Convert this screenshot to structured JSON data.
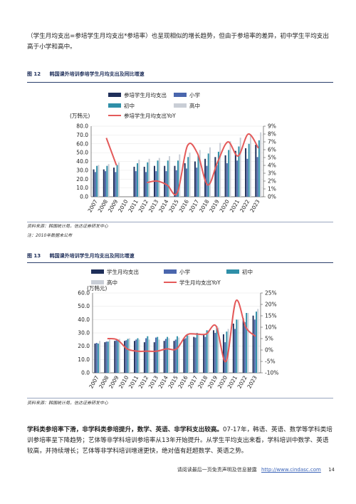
{
  "intro_text": "（学生月均支出=参培学生月均支出*参培率）也呈现相似的增长趋势，但由于参培率的差异，初中学生平均支出高于小学和高中。",
  "fig12": {
    "number": "图 12",
    "title": "韩国课外培训参培学生月均支出及同比增速",
    "source": "资料来源：韩国统计局，信达证券研发中心",
    "note": "注：2010年数据未公布"
  },
  "fig13": {
    "number": "图 13",
    "title": "韩国课外培训学生月均支出及同比增速",
    "source": "资料来源：韩国统计局，信达证券研发中心"
  },
  "body_bold": "学科类参培率下滑，非学科类参培提升，数学、英语、非学科支出较高。",
  "body_rest": "07-17年，韩语、英语、数学等学科类培训参培率呈下降趋势；艺体等非学科培训参培率从13年开始提升。从学生平均支出来看，学科培训中数学、英语较高，并持续增长；艺体等非学科培训增速更快，绝对值有赶超数学、英语之势。",
  "footer": {
    "disclaimer": "请阅读最后一页免责声明及信息披露",
    "url": "http://www.cindasc.com",
    "page": "14"
  },
  "colors": {
    "navy": "#1f2f5a",
    "blue": "#4a66ad",
    "teal": "#2f8fa8",
    "gray": "#c9ced6",
    "red": "#e45a5a"
  },
  "chart_data": [
    {
      "type": "bar",
      "id": "fig12",
      "unit_label": "(万韩元)",
      "categories": [
        "2007",
        "2008",
        "2009",
        "2010",
        "2011",
        "2012",
        "2013",
        "2014",
        "2015",
        "2016",
        "2017",
        "2018",
        "2019",
        "2020",
        "2021",
        "2022",
        "2023"
      ],
      "ylim": [
        0,
        80
      ],
      "yticks": [
        0,
        10,
        20,
        30,
        40,
        50,
        60,
        70,
        80
      ],
      "ylim_right": [
        0,
        9
      ],
      "yticks_right": [
        "0%",
        "1%",
        "2%",
        "3%",
        "4%",
        "5%",
        "6%",
        "7%",
        "8%",
        "9%"
      ],
      "legend": [
        "参培学生月均支出",
        "小学",
        "初中",
        "高中",
        "参培学生月均支出YoY"
      ],
      "series": [
        {
          "name": "参培学生月均支出",
          "values": [
            31,
            31,
            33,
            null,
            34,
            34,
            35,
            35,
            35,
            38,
            40,
            43,
            45,
            47,
            52,
            55,
            59
          ]
        },
        {
          "name": "小学",
          "values": [
            28,
            29,
            28,
            null,
            29,
            28,
            29,
            29,
            30,
            32,
            33,
            35,
            36,
            38,
            41,
            43,
            45
          ]
        },
        {
          "name": "初中",
          "values": [
            35,
            35,
            36,
            null,
            38,
            39,
            41,
            41,
            41,
            45,
            47,
            49,
            51,
            53,
            57,
            60,
            64
          ]
        },
        {
          "name": "高中",
          "values": [
            36,
            37,
            39,
            null,
            42,
            43,
            44,
            46,
            48,
            50,
            53,
            56,
            61,
            63,
            67,
            70,
            73
          ]
        },
        {
          "name": "参培学生月均支出YoY",
          "axis": "right",
          "values": [
            null,
            7.5,
            4.0,
            null,
            null,
            1.8,
            2.0,
            1.5,
            0.5,
            6.5,
            5.5,
            1.5,
            4.5,
            7.0,
            5.2,
            8.0,
            6.2
          ]
        }
      ]
    },
    {
      "type": "bar",
      "id": "fig13",
      "unit_label": "(万韩元)",
      "categories": [
        "2007",
        "2008",
        "2009",
        "2010",
        "2011",
        "2012",
        "2013",
        "2014",
        "2015",
        "2016",
        "2017",
        "2018",
        "2019",
        "2020",
        "2021",
        "2022",
        "2023"
      ],
      "ylim": [
        0,
        60
      ],
      "yticks": [
        0.0,
        10.0,
        20.0,
        30.0,
        40.0,
        50.0,
        60.0
      ],
      "ylim_right": [
        -10,
        25
      ],
      "yticks_right": [
        "-10%",
        "-5%",
        "0%",
        "5%",
        "10%",
        "15%",
        "20%",
        "25%"
      ],
      "legend": [
        "学生月均支出",
        "小学",
        "初中",
        "高中",
        "学生月均支出YoY"
      ],
      "series": [
        {
          "name": "学生月均支出",
          "values": [
            22,
            23,
            24,
            24,
            24,
            23,
            23,
            24,
            24,
            25.5,
            27,
            29,
            32,
            29,
            37,
            41,
            43
          ]
        },
        {
          "name": "小学",
          "values": [
            22.5,
            23.5,
            24.5,
            24.5,
            25,
            26,
            26.5,
            25.5,
            25,
            26,
            26.5,
            27,
            30,
            23,
            33,
            38,
            40
          ]
        },
        {
          "name": "初中",
          "values": [
            22,
            23.5,
            25,
            25.5,
            26,
            27.5,
            27,
            27,
            27.5,
            29,
            30,
            32,
            35,
            31,
            40,
            45,
            46
          ]
        },
        {
          "name": "高中",
          "values": [
            24,
            25,
            25.5,
            26,
            25,
            25,
            25,
            26,
            26.5,
            28,
            29.5,
            32,
            34,
            33,
            40,
            45,
            48
          ]
        },
        {
          "name": "学生月均支出YoY",
          "axis": "right",
          "values": [
            null,
            5.0,
            4.5,
            0.5,
            -0.5,
            -0.5,
            -0.5,
            0.5,
            0.5,
            6.5,
            7.0,
            7.0,
            10.5,
            -5.0,
            21.5,
            10.0,
            6.0
          ]
        }
      ]
    }
  ]
}
